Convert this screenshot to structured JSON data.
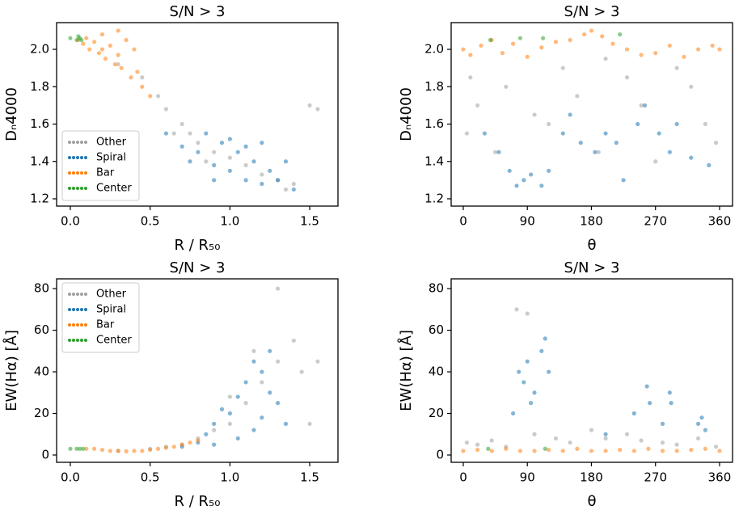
{
  "chart_data": [
    {
      "type": "scatter",
      "title": "S/N > 3",
      "xlabel": "R / R₅₀",
      "ylabel": "Dₙ4000",
      "xlim": [
        -0.086,
        1.677
      ],
      "ylim": [
        1.161,
        2.143
      ],
      "xticks": [
        {
          "value": 0,
          "label": "0.0"
        },
        0.5,
        {
          "value": 1,
          "label": "1.0"
        },
        1.5
      ],
      "yticks": [
        1.2,
        1.4,
        1.6,
        1.8,
        {
          "value": 2,
          "label": "2.0"
        }
      ],
      "legend": "lower left",
      "series": [
        {
          "name": "Other",
          "color": "#a0a0a0",
          "x": [
            0.3,
            0.45,
            0.55,
            0.6,
            0.7,
            0.75,
            0.8,
            0.9,
            1.0,
            1.1,
            1.2,
            1.3,
            1.4,
            1.5,
            1.55,
            0.65,
            0.85,
            1.35
          ],
          "values": [
            1.92,
            1.85,
            1.75,
            1.68,
            1.6,
            1.55,
            1.5,
            1.45,
            1.42,
            1.38,
            1.33,
            1.3,
            1.28,
            1.7,
            1.68,
            1.55,
            1.4,
            1.25
          ]
        },
        {
          "name": "Spiral",
          "color": "#1f77b4",
          "x": [
            0.6,
            0.7,
            0.8,
            0.85,
            0.9,
            0.95,
            1.0,
            1.05,
            1.1,
            1.15,
            1.2,
            1.25,
            1.3,
            1.35,
            1.4,
            0.75,
            1.0,
            1.1,
            0.9,
            1.2
          ],
          "values": [
            1.55,
            1.48,
            1.45,
            1.55,
            1.38,
            1.5,
            1.35,
            1.45,
            1.3,
            1.4,
            1.28,
            1.35,
            1.3,
            1.4,
            1.25,
            1.4,
            1.52,
            1.48,
            1.3,
            1.5
          ]
        },
        {
          "name": "Bar",
          "color": "#ff7f0e",
          "x": [
            0.05,
            0.08,
            0.1,
            0.12,
            0.15,
            0.18,
            0.2,
            0.22,
            0.25,
            0.28,
            0.3,
            0.32,
            0.35,
            0.38,
            0.4,
            0.42,
            0.45,
            0.5,
            0.2,
            0.3
          ],
          "values": [
            2.05,
            2.03,
            2.06,
            2.0,
            2.04,
            1.98,
            2.08,
            1.95,
            2.02,
            1.92,
            2.1,
            1.9,
            2.05,
            1.85,
            2.0,
            1.88,
            1.8,
            1.75,
            2.0,
            1.97
          ]
        },
        {
          "name": "Center",
          "color": "#2ca02c",
          "x": [
            0.0,
            0.04,
            0.05,
            0.06,
            0.07
          ],
          "values": [
            2.06,
            2.05,
            2.07,
            2.06,
            2.05
          ]
        }
      ]
    },
    {
      "type": "scatter",
      "title": "S/N > 3",
      "xlabel": "θ",
      "ylabel": "Dₙ4000",
      "xlim": [
        -17,
        378.2
      ],
      "ylim": [
        1.161,
        2.143
      ],
      "xticks": [
        0,
        90,
        180,
        270,
        360
      ],
      "yticks": [
        1.2,
        1.4,
        1.6,
        1.8,
        {
          "value": 2,
          "label": "2.0"
        }
      ],
      "legend": false,
      "series": [
        {
          "name": "Other",
          "color": "#a0a0a0",
          "x": [
            5,
            20,
            45,
            60,
            100,
            140,
            160,
            200,
            230,
            250,
            300,
            320,
            340,
            355,
            10,
            120,
            190,
            270
          ],
          "values": [
            1.55,
            1.7,
            1.45,
            1.8,
            1.65,
            1.9,
            1.75,
            1.95,
            1.85,
            1.7,
            1.9,
            1.8,
            1.6,
            1.5,
            1.85,
            1.6,
            1.45,
            1.4
          ]
        },
        {
          "name": "Spiral",
          "color": "#1f77b4",
          "x": [
            30,
            50,
            65,
            75,
            85,
            95,
            110,
            120,
            140,
            150,
            165,
            185,
            200,
            215,
            225,
            245,
            255,
            275,
            290,
            300,
            320,
            345
          ],
          "values": [
            1.55,
            1.45,
            1.35,
            1.27,
            1.3,
            1.33,
            1.27,
            1.35,
            1.55,
            1.65,
            1.5,
            1.45,
            1.55,
            1.5,
            1.3,
            1.6,
            1.7,
            1.55,
            1.45,
            1.6,
            1.42,
            1.38
          ]
        },
        {
          "name": "Bar",
          "color": "#ff7f0e",
          "x": [
            0,
            10,
            25,
            40,
            55,
            70,
            90,
            110,
            130,
            150,
            170,
            180,
            195,
            210,
            230,
            250,
            270,
            290,
            310,
            330,
            350,
            360
          ],
          "values": [
            2.0,
            1.97,
            2.02,
            2.05,
            1.98,
            2.03,
            1.96,
            2.01,
            2.04,
            2.05,
            2.08,
            2.1,
            2.07,
            2.03,
            2.0,
            1.97,
            1.98,
            2.02,
            1.96,
            2.0,
            2.02,
            2.0
          ]
        },
        {
          "name": "Center",
          "color": "#2ca02c",
          "x": [
            38,
            80,
            112,
            220
          ],
          "values": [
            2.05,
            2.06,
            2.06,
            2.08
          ]
        }
      ]
    },
    {
      "type": "scatter",
      "title": "S/N > 3",
      "xlabel": "R / R₅₀",
      "ylabel": "EW(Hα) [Å]",
      "xlim": [
        -0.086,
        1.677
      ],
      "ylim": [
        -3.5,
        84.7
      ],
      "xticks": [
        {
          "value": 0,
          "label": "0.0"
        },
        0.5,
        {
          "value": 1,
          "label": "1.0"
        },
        1.5
      ],
      "yticks": [
        0,
        20,
        40,
        60,
        80
      ],
      "legend": "upper left",
      "series": [
        {
          "name": "Other",
          "color": "#a0a0a0",
          "x": [
            0.3,
            0.5,
            0.7,
            0.8,
            0.9,
            1.0,
            1.1,
            1.2,
            1.3,
            1.4,
            1.5,
            1.55,
            1.3,
            1.45,
            1.0,
            1.15,
            0.6
          ],
          "values": [
            2,
            3,
            5,
            8,
            12,
            15,
            25,
            35,
            45,
            55,
            15,
            45,
            80,
            40,
            28,
            50,
            4
          ]
        },
        {
          "name": "Spiral",
          "color": "#1f77b4",
          "x": [
            0.7,
            0.8,
            0.85,
            0.9,
            0.95,
            1.0,
            1.05,
            1.1,
            1.15,
            1.2,
            1.25,
            1.3,
            1.05,
            1.15,
            0.9,
            1.2,
            1.35,
            1.25
          ],
          "values": [
            4,
            6,
            10,
            15,
            22,
            20,
            28,
            35,
            45,
            40,
            30,
            25,
            8,
            12,
            5,
            18,
            15,
            50
          ]
        },
        {
          "name": "Bar",
          "color": "#ff7f0e",
          "x": [
            0.1,
            0.15,
            0.2,
            0.25,
            0.3,
            0.35,
            0.4,
            0.45,
            0.5,
            0.55,
            0.6,
            0.65,
            0.7,
            0.75,
            0.8
          ],
          "values": [
            3,
            3,
            2.5,
            2,
            2,
            1.8,
            2,
            2,
            2.5,
            3,
            3.5,
            4,
            5,
            6,
            7
          ]
        },
        {
          "name": "Center",
          "color": "#2ca02c",
          "x": [
            0,
            0.04,
            0.06,
            0.08
          ],
          "values": [
            3,
            3,
            3,
            3
          ]
        }
      ]
    },
    {
      "type": "scatter",
      "title": "S/N > 3",
      "xlabel": "θ",
      "ylabel": "EW(Hα) [Å]",
      "xlim": [
        -17,
        378.2
      ],
      "ylim": [
        -3.5,
        84.7
      ],
      "xticks": [
        0,
        90,
        180,
        270,
        360
      ],
      "yticks": [
        0,
        20,
        40,
        60,
        80
      ],
      "legend": false,
      "series": [
        {
          "name": "Other",
          "color": "#a0a0a0",
          "x": [
            5,
            20,
            40,
            60,
            75,
            100,
            130,
            150,
            180,
            200,
            230,
            250,
            280,
            300,
            330,
            355,
            90
          ],
          "values": [
            6,
            5,
            7,
            4,
            70,
            10,
            8,
            6,
            12,
            8,
            10,
            7,
            6,
            5,
            8,
            4,
            68
          ]
        },
        {
          "name": "Spiral",
          "color": "#1f77b4",
          "x": [
            70,
            78,
            85,
            90,
            95,
            100,
            110,
            115,
            120,
            200,
            240,
            258,
            262,
            280,
            290,
            292,
            330,
            335,
            340
          ],
          "values": [
            20,
            40,
            35,
            45,
            25,
            30,
            50,
            56,
            40,
            10,
            20,
            33,
            25,
            15,
            30,
            25,
            15,
            18,
            12
          ]
        },
        {
          "name": "Bar",
          "color": "#ff7f0e",
          "x": [
            0,
            20,
            40,
            60,
            80,
            100,
            120,
            140,
            160,
            180,
            200,
            220,
            240,
            260,
            280,
            300,
            320,
            340,
            360
          ],
          "values": [
            2,
            2.5,
            2,
            3,
            2,
            2,
            2.5,
            2,
            3,
            2,
            2,
            2.5,
            2,
            3,
            2,
            2,
            2.5,
            3,
            2
          ]
        },
        {
          "name": "Center",
          "color": "#2ca02c",
          "x": [
            35,
            115
          ],
          "values": [
            3,
            3
          ]
        }
      ]
    }
  ]
}
